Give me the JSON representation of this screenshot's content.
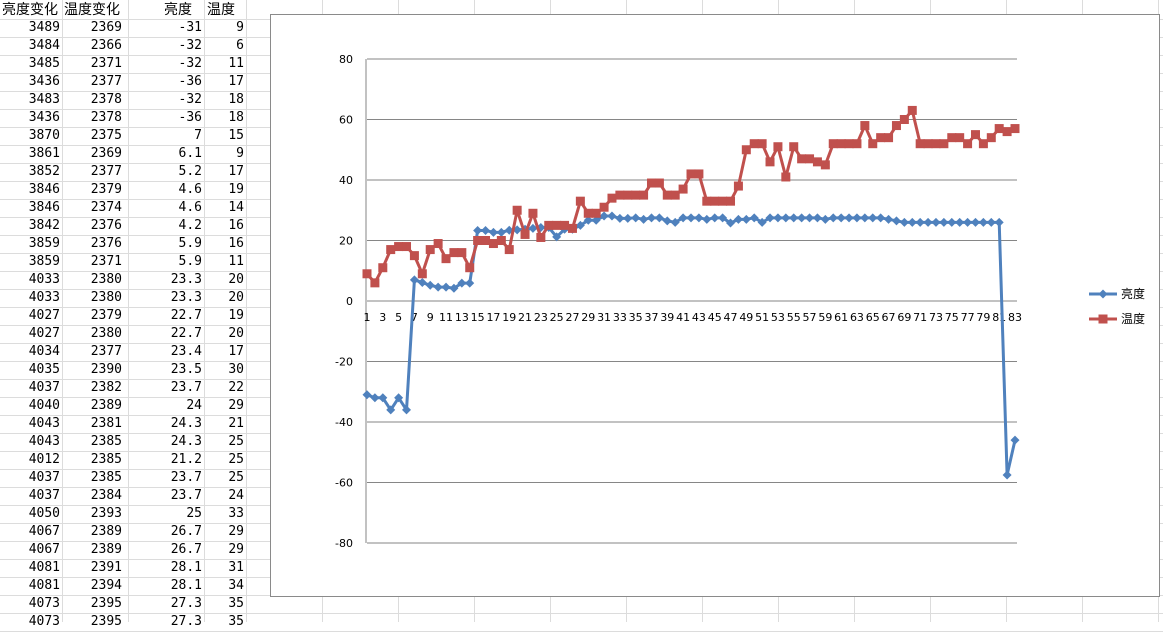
{
  "columns": [
    "亮度变化",
    "温度变化",
    "亮度",
    "温度"
  ],
  "rows": [
    [
      "3489",
      "2369",
      "-31",
      "9"
    ],
    [
      "3484",
      "2366",
      "-32",
      "6"
    ],
    [
      "3485",
      "2371",
      "-32",
      "11"
    ],
    [
      "3436",
      "2377",
      "-36",
      "17"
    ],
    [
      "3483",
      "2378",
      "-32",
      "18"
    ],
    [
      "3436",
      "2378",
      "-36",
      "18"
    ],
    [
      "3870",
      "2375",
      "7",
      "15"
    ],
    [
      "3861",
      "2369",
      "6.1",
      "9"
    ],
    [
      "3852",
      "2377",
      "5.2",
      "17"
    ],
    [
      "3846",
      "2379",
      "4.6",
      "19"
    ],
    [
      "3846",
      "2374",
      "4.6",
      "14"
    ],
    [
      "3842",
      "2376",
      "4.2",
      "16"
    ],
    [
      "3859",
      "2376",
      "5.9",
      "16"
    ],
    [
      "3859",
      "2371",
      "5.9",
      "11"
    ],
    [
      "4033",
      "2380",
      "23.3",
      "20"
    ],
    [
      "4033",
      "2380",
      "23.3",
      "20"
    ],
    [
      "4027",
      "2379",
      "22.7",
      "19"
    ],
    [
      "4027",
      "2380",
      "22.7",
      "20"
    ],
    [
      "4034",
      "2377",
      "23.4",
      "17"
    ],
    [
      "4035",
      "2390",
      "23.5",
      "30"
    ],
    [
      "4037",
      "2382",
      "23.7",
      "22"
    ],
    [
      "4040",
      "2389",
      "24",
      "29"
    ],
    [
      "4043",
      "2381",
      "24.3",
      "21"
    ],
    [
      "4043",
      "2385",
      "24.3",
      "25"
    ],
    [
      "4012",
      "2385",
      "21.2",
      "25"
    ],
    [
      "4037",
      "2385",
      "23.7",
      "25"
    ],
    [
      "4037",
      "2384",
      "23.7",
      "24"
    ],
    [
      "4050",
      "2393",
      "25",
      "33"
    ],
    [
      "4067",
      "2389",
      "26.7",
      "29"
    ],
    [
      "4067",
      "2389",
      "26.7",
      "29"
    ],
    [
      "4081",
      "2391",
      "28.1",
      "31"
    ],
    [
      "4081",
      "2394",
      "28.1",
      "34"
    ],
    [
      "4073",
      "2395",
      "27.3",
      "35"
    ],
    [
      "4073",
      "2395",
      "27.3",
      "35"
    ]
  ],
  "chart_data": {
    "type": "line",
    "title": "",
    "xlabel": "",
    "ylabel": "",
    "ylim": [
      -80,
      80
    ],
    "yticks": [
      -80,
      -60,
      -40,
      -20,
      0,
      20,
      40,
      60,
      80
    ],
    "x": [
      1,
      2,
      3,
      4,
      5,
      6,
      7,
      8,
      9,
      10,
      11,
      12,
      13,
      14,
      15,
      16,
      17,
      18,
      19,
      20,
      21,
      22,
      23,
      24,
      25,
      26,
      27,
      28,
      29,
      30,
      31,
      32,
      33,
      34,
      35,
      36,
      37,
      38,
      39,
      40,
      41,
      42,
      43,
      44,
      45,
      46,
      47,
      48,
      49,
      50,
      51,
      52,
      53,
      54,
      55,
      56,
      57,
      58,
      59,
      60,
      61,
      62,
      63,
      64,
      65,
      66,
      67,
      68,
      69,
      70,
      71,
      72,
      73,
      74,
      75,
      76,
      77,
      78,
      79,
      80,
      81,
      82,
      83
    ],
    "xtick_labels": [
      "1",
      "3",
      "5",
      "7",
      "9",
      "11",
      "13",
      "15",
      "17",
      "19",
      "21",
      "23",
      "25",
      "27",
      "29",
      "31",
      "33",
      "35",
      "37",
      "39",
      "41",
      "43",
      "45",
      "47",
      "49",
      "51",
      "53",
      "55",
      "57",
      "59",
      "61",
      "63",
      "65",
      "67",
      "69",
      "71",
      "73",
      "75",
      "77",
      "79",
      "81",
      "83"
    ],
    "grid": true,
    "legend_position": "right",
    "series": [
      {
        "name": "亮度",
        "color": "#4f81bd",
        "marker": "diamond",
        "values": [
          -31,
          -32,
          -32,
          -36,
          -32,
          -36,
          7,
          6.1,
          5.2,
          4.6,
          4.6,
          4.2,
          5.9,
          5.9,
          23.3,
          23.3,
          22.7,
          22.7,
          23.4,
          23.5,
          23.7,
          24,
          24.3,
          24.3,
          21.2,
          23.7,
          23.7,
          25,
          26.7,
          26.7,
          28.1,
          28.1,
          27.3,
          27.3,
          27.5,
          27,
          27.5,
          27.5,
          26.5,
          26,
          27.5,
          27.5,
          27.5,
          27,
          27.5,
          27.5,
          25.8,
          27,
          27,
          27.5,
          26,
          27.5,
          27.5,
          27.5,
          27.5,
          27.5,
          27.5,
          27.5,
          27,
          27.5,
          27.5,
          27.5,
          27.5,
          27.5,
          27.5,
          27.5,
          27,
          26.5,
          26,
          26,
          26,
          26,
          26,
          26,
          26,
          26,
          26,
          26,
          26,
          26,
          26,
          -57.5,
          -46
        ]
      },
      {
        "name": "温度",
        "color": "#c0504d",
        "marker": "square",
        "values": [
          9,
          6,
          11,
          17,
          18,
          18,
          15,
          9,
          17,
          19,
          14,
          16,
          16,
          11,
          20,
          20,
          19,
          20,
          17,
          30,
          22,
          29,
          21,
          25,
          25,
          25,
          24,
          33,
          29,
          29,
          31,
          34,
          35,
          35,
          35,
          35,
          39,
          39,
          35,
          35,
          37,
          42,
          42,
          33,
          33,
          33,
          33,
          38,
          50,
          52,
          52,
          46,
          51,
          41,
          51,
          47,
          47,
          46,
          45,
          52,
          52,
          52,
          52,
          58,
          52,
          54,
          54,
          58,
          60,
          63,
          52,
          52,
          52,
          52,
          54,
          54,
          52,
          55,
          52,
          54,
          57,
          56,
          57
        ]
      }
    ]
  }
}
